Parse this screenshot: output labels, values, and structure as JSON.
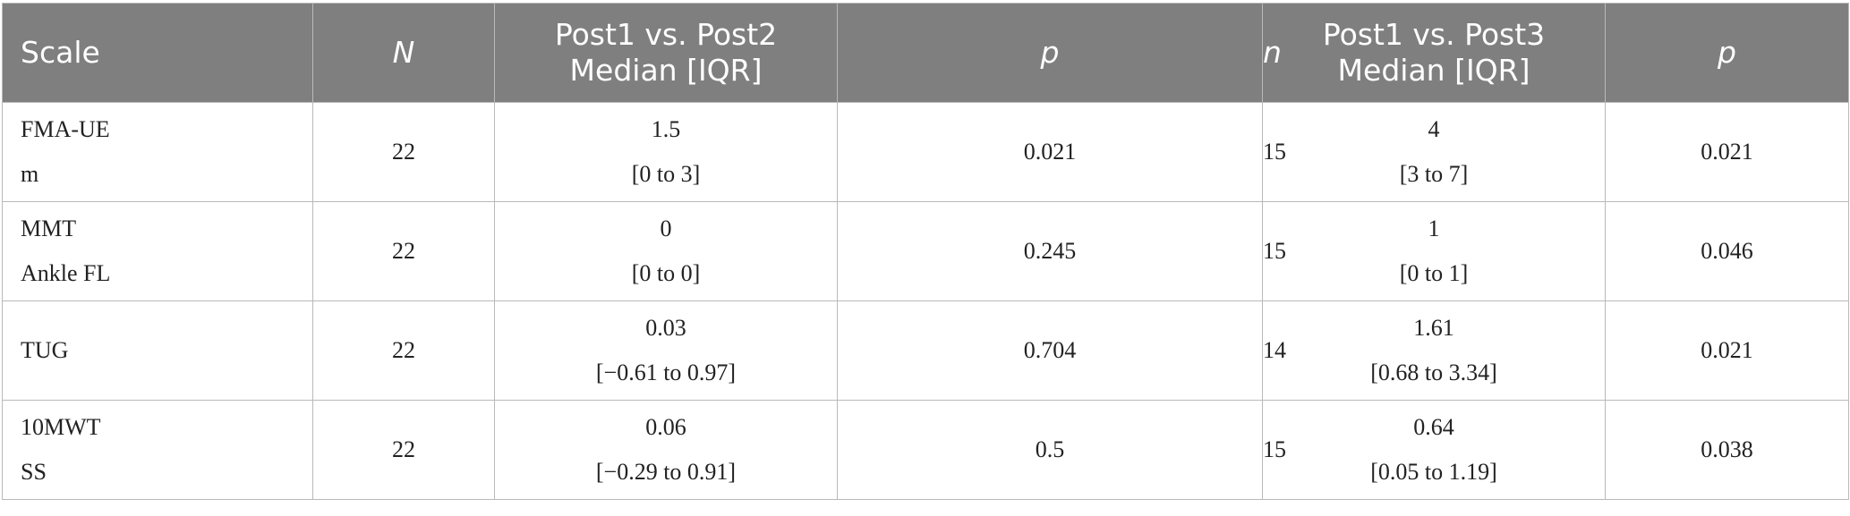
{
  "table": {
    "headers": [
      {
        "lines": [
          "Scale"
        ]
      },
      {
        "lines": [
          "N"
        ]
      },
      {
        "lines": [
          "Post1 vs. Post2",
          "Median [IQR]"
        ]
      },
      {
        "lines": [
          "p"
        ]
      },
      {
        "lines": [
          "n"
        ]
      },
      {
        "lines": [
          "Post1 vs. Post3",
          "Median [IQR]"
        ]
      },
      {
        "lines": [
          "p"
        ]
      }
    ],
    "rows": [
      {
        "scale": [
          "FMA-UE",
          "m"
        ],
        "N": "22",
        "post2": [
          "1.5",
          "[0 to 3]"
        ],
        "p2": "0.021",
        "n": "15",
        "post3": [
          "4",
          "[3 to 7]"
        ],
        "p3": "0.021"
      },
      {
        "scale": [
          "MMT",
          "Ankle FL"
        ],
        "N": "22",
        "post2": [
          "0",
          "[0 to 0]"
        ],
        "p2": "0.245",
        "n": "15",
        "post3": [
          "1",
          "[0 to 1]"
        ],
        "p3": "0.046"
      },
      {
        "scale": [
          "TUG",
          ""
        ],
        "N": "22",
        "post2": [
          "0.03",
          "[−0.61 to 0.97]"
        ],
        "p2": "0.704",
        "n": "14",
        "post3": [
          "1.61",
          "[0.68 to 3.34]"
        ],
        "p3": "0.021"
      },
      {
        "scale": [
          "10MWT",
          "SS"
        ],
        "N": "22",
        "post2": [
          "0.06",
          "[−0.29 to 0.91]"
        ],
        "p2": "0.5",
        "n": "15",
        "post3": [
          "0.64",
          "[0.05 to 1.19]"
        ],
        "p3": "0.038"
      }
    ]
  }
}
